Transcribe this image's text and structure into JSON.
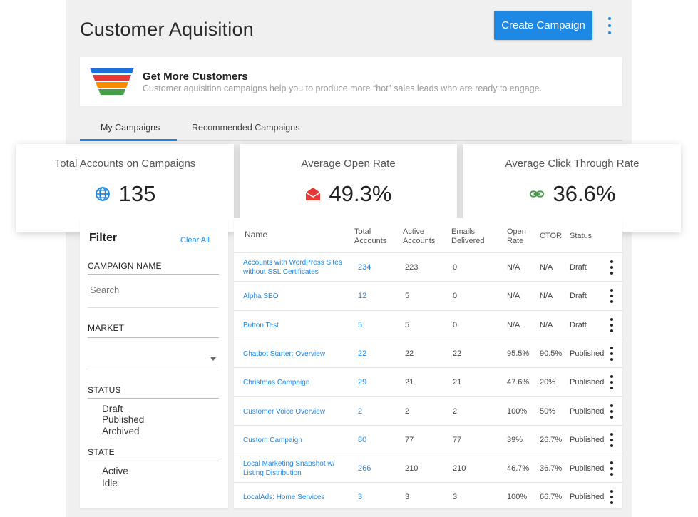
{
  "header": {
    "title": "Customer Aquisition",
    "create_button": "Create Campaign"
  },
  "banner": {
    "title": "Get More Customers",
    "subtitle": "Customer aquisition campaigns help you to produce more “hot” sales leads who are ready to engage."
  },
  "tabs": [
    {
      "label": "My Campaigns",
      "active": true
    },
    {
      "label": "Recommended Campaigns",
      "active": false
    }
  ],
  "stats": [
    {
      "label": "Total Accounts on Campaigns",
      "value": "135",
      "icon": "globe-icon",
      "color": "#1e88e5"
    },
    {
      "label": "Average Open Rate",
      "value": "49.3%",
      "icon": "open-envelope-icon",
      "color": "#e53935"
    },
    {
      "label": "Average Click Through Rate",
      "value": "36.6%",
      "icon": "link-icon",
      "color": "#43a047"
    }
  ],
  "filter": {
    "title": "Filter",
    "clear_all": "Clear All",
    "campaign_name_label": "CAMPAIGN NAME",
    "search_placeholder": "Search",
    "market_label": "MARKET",
    "status_label": "STATUS",
    "status_options": [
      "Draft",
      "Published",
      "Archived"
    ],
    "state_label": "STATE",
    "state_options": [
      "Active",
      "Idle"
    ]
  },
  "table": {
    "columns": {
      "name": "Name",
      "total_accounts": "Total Accounts",
      "active_accounts": "Active Accounts",
      "emails_delivered": "Emails Delivered",
      "open_rate": "Open Rate",
      "ctor": "CTOR",
      "status": "Status"
    },
    "rows": [
      {
        "name": "Accounts with WordPress Sites without SSL Certificates",
        "total": "234",
        "active": "223",
        "emails": "0",
        "open": "N/A",
        "ctor": "N/A",
        "status": "Draft"
      },
      {
        "name": "Alpha SEO",
        "total": "12",
        "active": "5",
        "emails": "0",
        "open": "N/A",
        "ctor": "N/A",
        "status": "Draft"
      },
      {
        "name": "Button Test",
        "total": "5",
        "active": "5",
        "emails": "0",
        "open": "N/A",
        "ctor": "N/A",
        "status": "Draft"
      },
      {
        "name": "Chatbot Starter: Overview",
        "total": "22",
        "active": "22",
        "emails": "22",
        "open": "95.5%",
        "ctor": "90.5%",
        "status": "Published"
      },
      {
        "name": "Christmas Campaign",
        "total": "29",
        "active": "21",
        "emails": "21",
        "open": "47.6%",
        "ctor": "20%",
        "status": "Published"
      },
      {
        "name": "Customer Voice Overview",
        "total": "2",
        "active": "2",
        "emails": "2",
        "open": "100%",
        "ctor": "50%",
        "status": "Published"
      },
      {
        "name": "Custom Campaign",
        "total": "80",
        "active": "77",
        "emails": "77",
        "open": "39%",
        "ctor": "26.7%",
        "status": "Published"
      },
      {
        "name": "Local Marketing Snapshot w/ Listing Distribution",
        "total": "266",
        "active": "210",
        "emails": "210",
        "open": "46.7%",
        "ctor": "36.7%",
        "status": "Published"
      },
      {
        "name": "LocalAds: Home Services",
        "total": "3",
        "active": "3",
        "emails": "3",
        "open": "100%",
        "ctor": "66.7%",
        "status": "Published"
      }
    ]
  }
}
